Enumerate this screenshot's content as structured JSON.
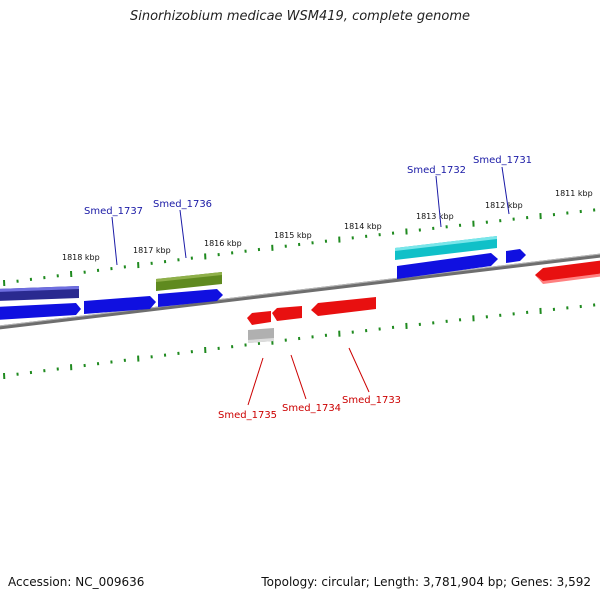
{
  "title": "Sinorhizobium medicae WSM419, complete genome",
  "footer": {
    "accession": "Accession: NC_009636",
    "summary": "Topology: circular; Length: 3,781,904 bp; Genes: 3,592"
  },
  "colors": {
    "backbone": "#7a7a7a",
    "tick": "#1f8a1f",
    "blue_gene": "#1010e0",
    "navy_gene": "#2a2a90",
    "olive_gene": "#5f8a1f",
    "cyan_gene": "#10c0c8",
    "red_gene": "#e81010",
    "gray_gene": "#b0b0b0",
    "top_label": "#1a1aa6",
    "bottom_label": "#cc0000"
  },
  "kbp_labels": [
    "1811 kbp",
    "1812 kbp",
    "1813 kbp",
    "1814 kbp",
    "1815 kbp",
    "1816 kbp",
    "1817 kbp",
    "1818 kbp"
  ],
  "top_genes": [
    "Smed_1731",
    "Smed_1732",
    "Smed_1736",
    "Smed_1737"
  ],
  "bottom_genes": [
    "Smed_1733",
    "Smed_1734",
    "Smed_1735"
  ]
}
